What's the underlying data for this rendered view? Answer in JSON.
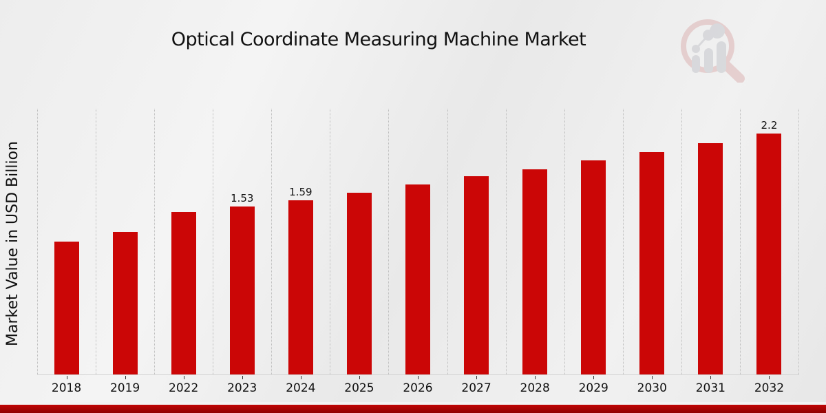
{
  "title": "Optical Coordinate Measuring Machine Market",
  "colors": {
    "bar": "#cb0606",
    "band_top": "#c00505",
    "band_bottom": "#8f0101",
    "grid": "#bdbdbd",
    "text": "#111111",
    "logo_ring_pink": "#cf8a8a",
    "logo_gray": "#a9abb3"
  },
  "footer_band": {
    "present": true
  },
  "logo": {
    "name": "magnifier-bar-chart-watermark"
  },
  "chart_data": {
    "type": "bar",
    "title": "Optical Coordinate Measuring Machine Market",
    "xlabel": "",
    "ylabel": "Market Value in USD Billion",
    "categories": [
      "2018",
      "2019",
      "2022",
      "2023",
      "2024",
      "2025",
      "2026",
      "2027",
      "2028",
      "2029",
      "2030",
      "2031",
      "2032"
    ],
    "values": [
      1.21,
      1.3,
      1.48,
      1.53,
      1.59,
      1.66,
      1.73,
      1.81,
      1.87,
      1.95,
      2.03,
      2.11,
      2.2
    ],
    "bar_value_labels": [
      "",
      "",
      "",
      "1.53",
      "1.59",
      "",
      "",
      "",
      "",
      "",
      "",
      "",
      "2.2"
    ],
    "ylim": [
      0,
      2.43
    ],
    "y_tick_labels_shown": false,
    "grid": "vertical-dotted",
    "legend": "none",
    "bar_color": "#cb0606"
  }
}
